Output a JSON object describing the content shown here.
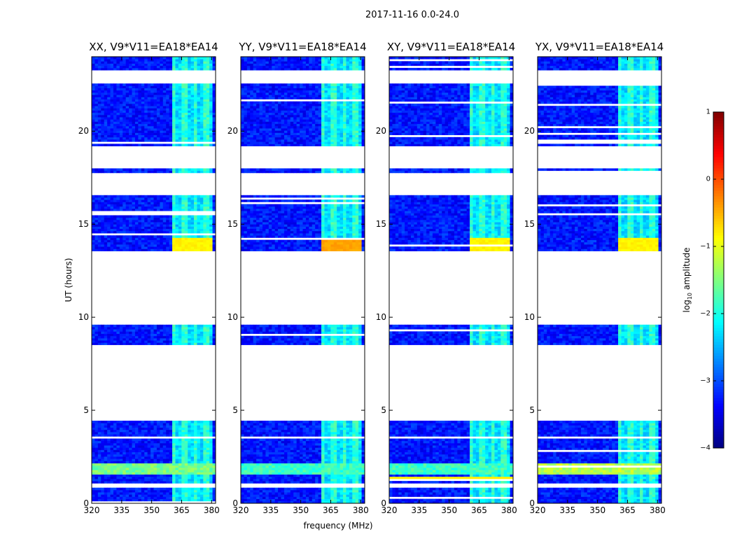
{
  "figure": {
    "title": "2017-11-16 0.0-24.0",
    "xlabel": "frequency (MHz)",
    "ylabel": "UT (hours)"
  },
  "chart_data": {
    "type": "heatmap",
    "xlim": [
      320,
      382
    ],
    "ylim": [
      0,
      24
    ],
    "xticks": [
      "320",
      "335",
      "350",
      "365",
      "380"
    ],
    "yticks": [
      "0",
      "5",
      "10",
      "15",
      "20"
    ],
    "colorbar": {
      "label_prefix": "log",
      "label_subscript": "10",
      "label_suffix": " amplitude",
      "range": [
        -4,
        1
      ],
      "ticks": [
        "−4",
        "−3",
        "−2",
        "−1",
        "0",
        "1"
      ],
      "colormap": "jet"
    },
    "rfi_band_mhz": [
      360,
      381
    ],
    "panels": [
      {
        "title": "XX, V9*V11=EA18*EA14",
        "rfi_peak_log10": -0.9,
        "band_1_5_2_2_log10": -1.3
      },
      {
        "title": "YY, V9*V11=EA18*EA14",
        "rfi_peak_log10": -0.5,
        "band_1_5_2_2_log10": -1.6
      },
      {
        "title": "XY, V9*V11=EA18*EA14",
        "rfi_peak_log10": -0.9,
        "band_1_5_2_2_log10": -1.6
      },
      {
        "title": "YX, V9*V11=EA18*EA14",
        "rfi_peak_log10": -0.9,
        "band_1_5_2_2_log10": -1.0
      }
    ],
    "flagged_intervals_ut": [
      [
        0.9,
        1.1
      ],
      [
        3.45,
        3.6
      ],
      [
        4.4,
        8.55
      ],
      [
        9.6,
        13.6
      ],
      [
        16.6,
        17.8
      ],
      [
        18.0,
        19.2
      ],
      [
        22.6,
        23.3
      ]
    ],
    "colors": {
      "low": "#00009f",
      "mid_low": "#0050ff",
      "mid": "#00e0ff",
      "high": "#ffd800",
      "flag": "#ffffff"
    }
  }
}
